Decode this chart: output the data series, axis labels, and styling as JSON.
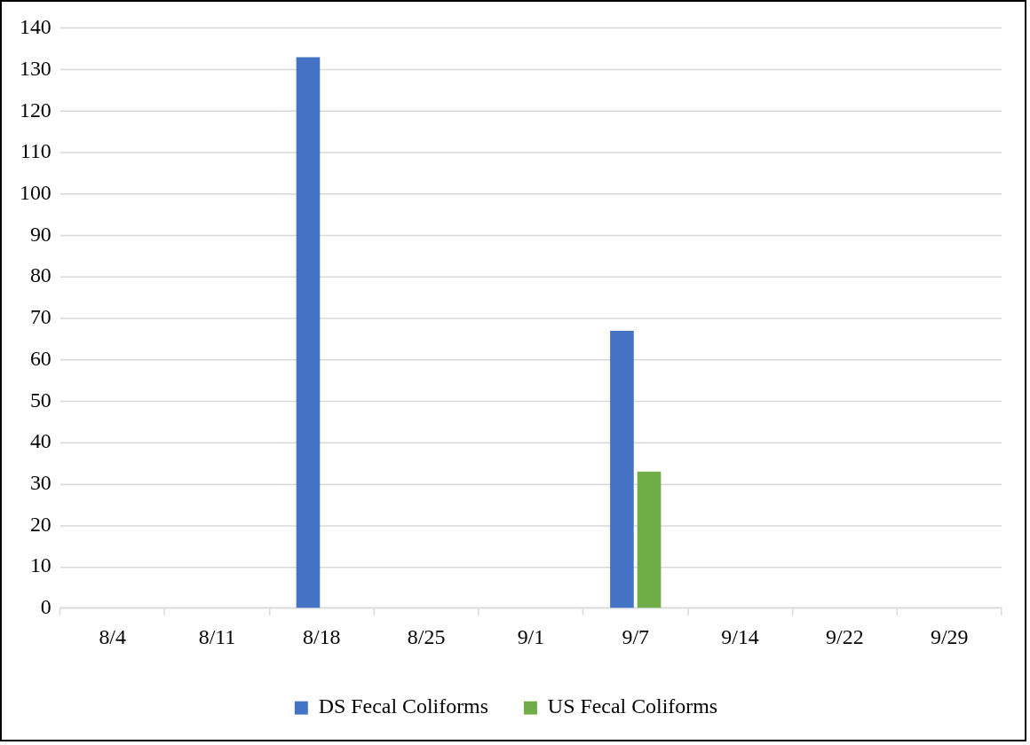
{
  "chart_data": {
    "type": "bar",
    "categories": [
      "8/4",
      "8/11",
      "8/18",
      "8/25",
      "9/1",
      "9/7",
      "9/14",
      "9/22",
      "9/29"
    ],
    "series": [
      {
        "name": "DS Fecal Coliforms",
        "color": "#4472c4",
        "values": [
          0,
          0,
          133,
          0,
          0,
          67,
          0,
          0,
          0
        ]
      },
      {
        "name": "US Fecal Coliforms",
        "color": "#70ad47",
        "values": [
          0,
          0,
          0,
          0,
          0,
          33,
          0,
          0,
          0
        ]
      }
    ],
    "ylim": [
      0,
      140
    ],
    "yticks": [
      0,
      10,
      20,
      30,
      40,
      50,
      60,
      70,
      80,
      90,
      100,
      110,
      120,
      130,
      140
    ],
    "grid": "y",
    "legend": "bottom"
  }
}
